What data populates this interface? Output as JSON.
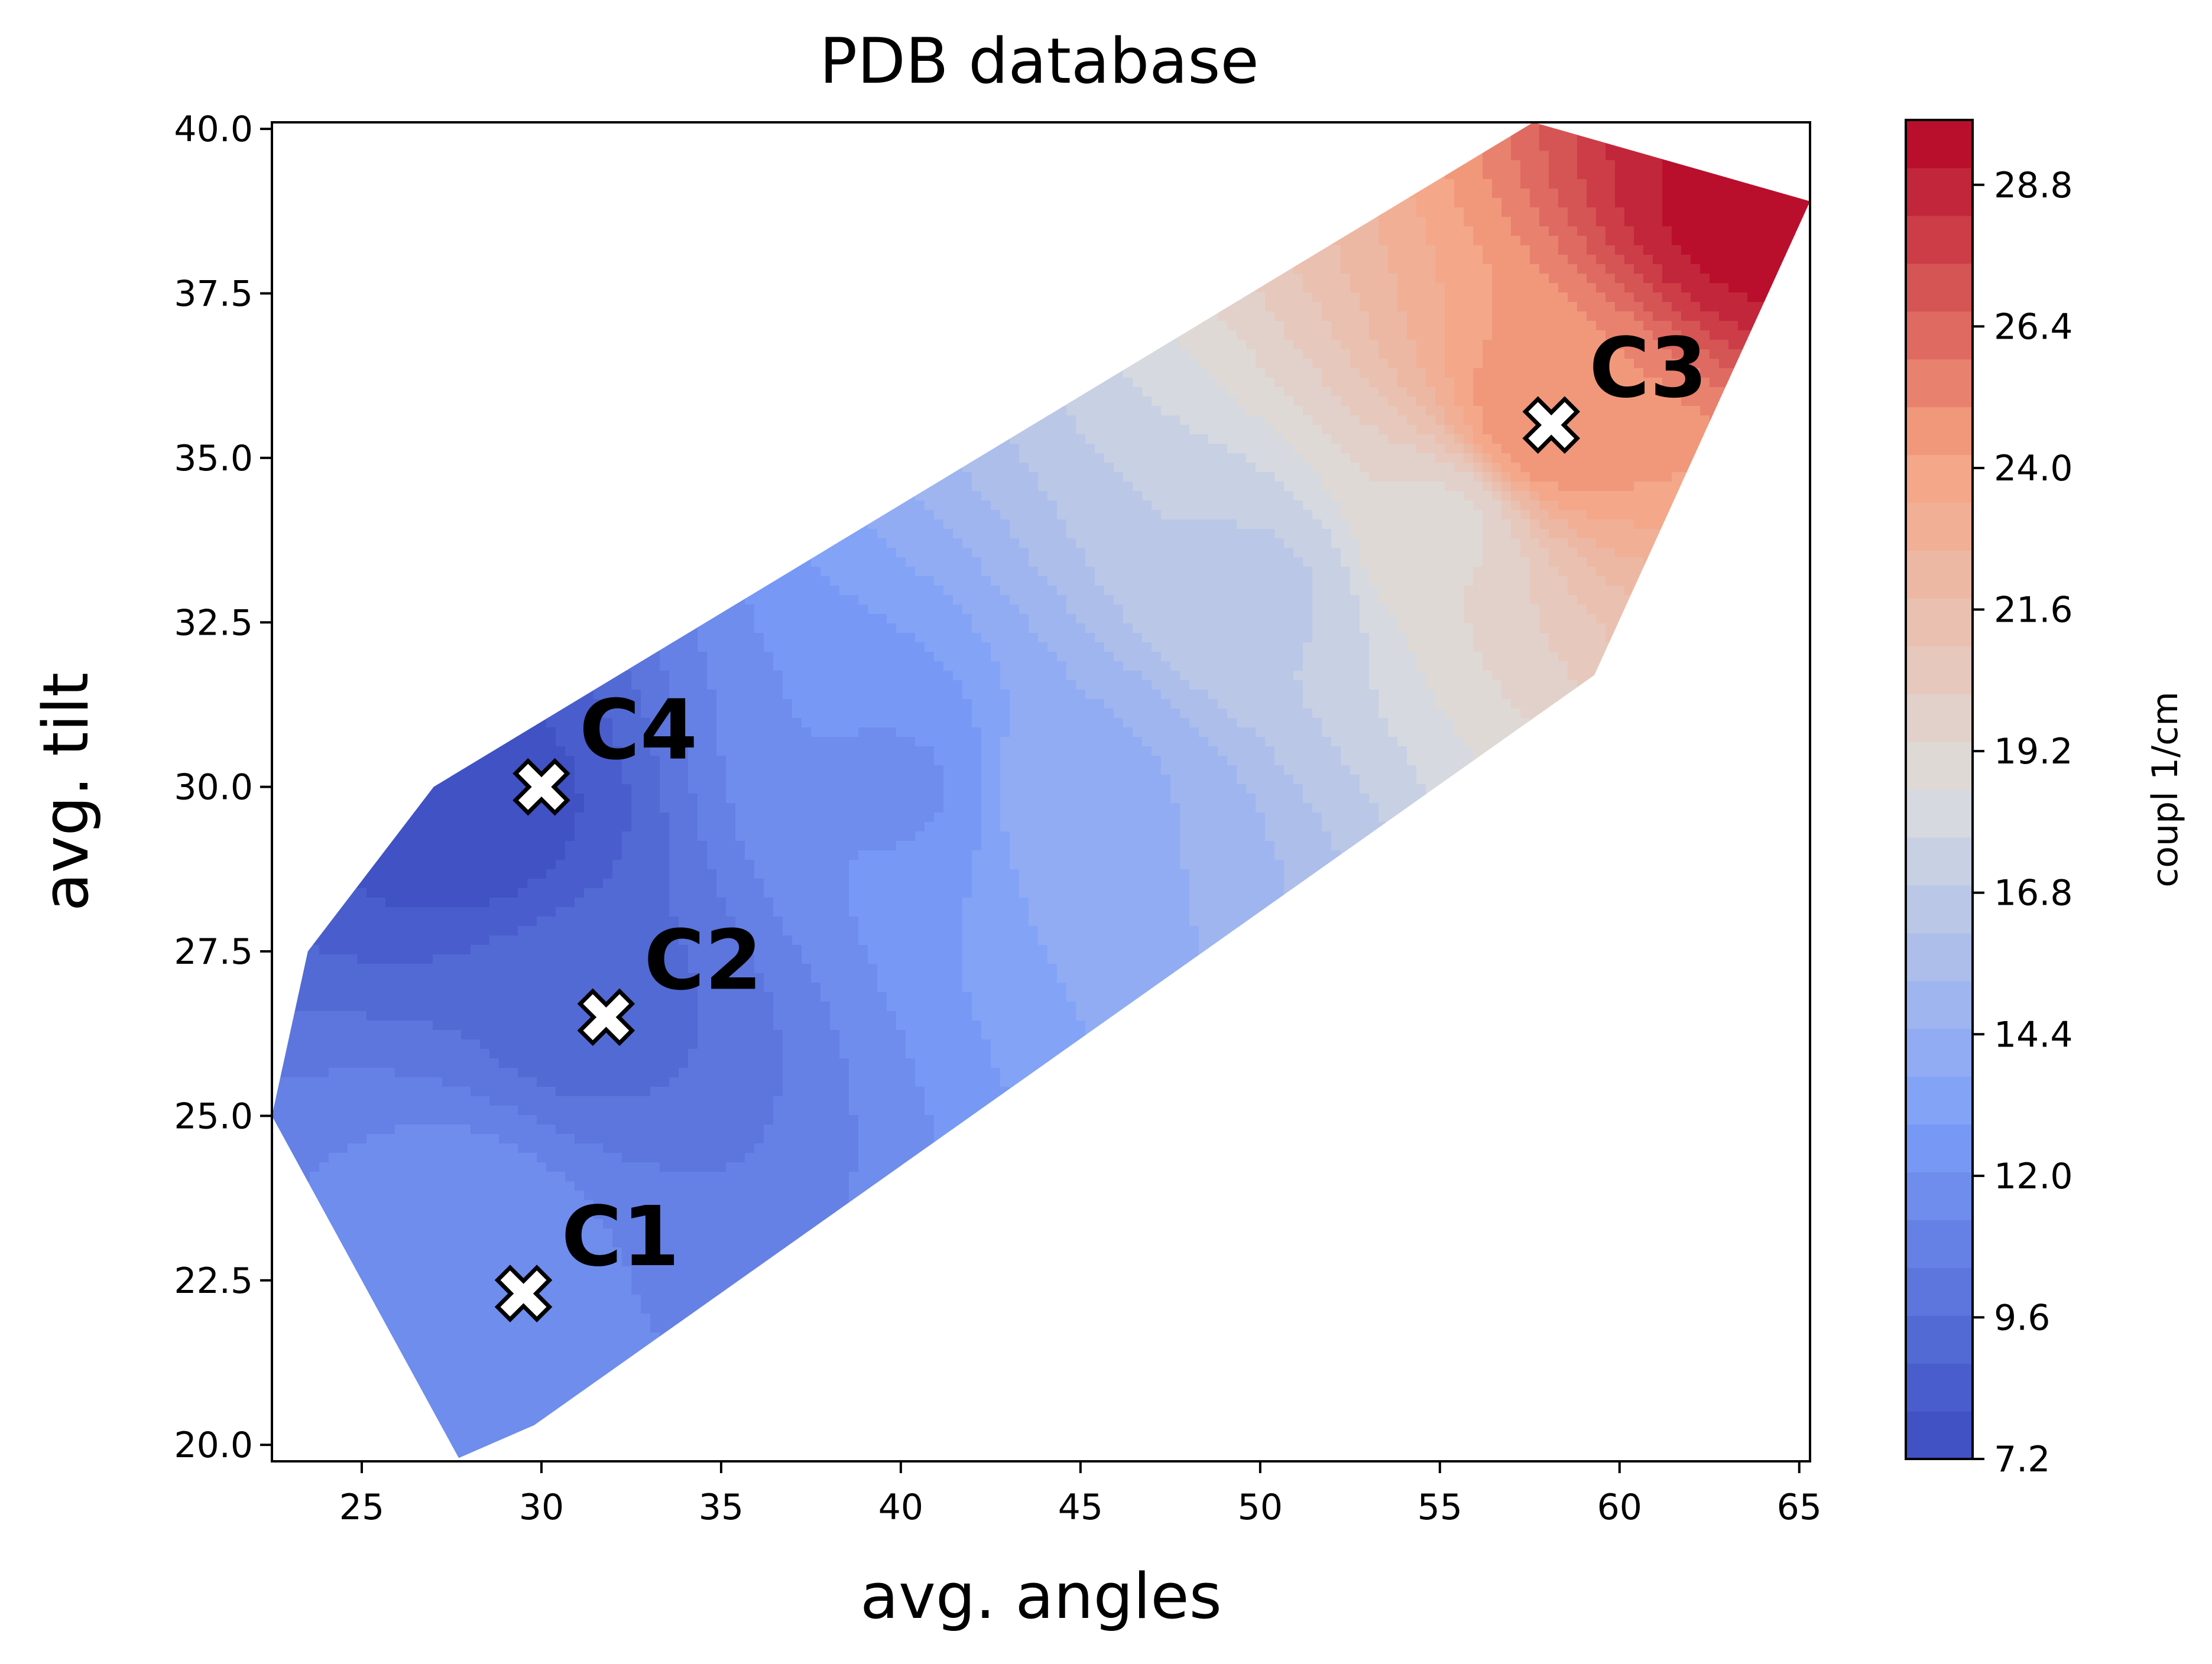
{
  "chart_data": {
    "type": "contour",
    "title": "PDB database",
    "xlabel": "avg. angles",
    "ylabel": "avg. tilt",
    "xlim": [
      22.5,
      65.3
    ],
    "ylim": [
      19.75,
      40.1
    ],
    "x_ticks": [
      "25",
      "30",
      "35",
      "40",
      "45",
      "50",
      "55",
      "60",
      "65"
    ],
    "y_ticks": [
      "20.0",
      "22.5",
      "25.0",
      "27.5",
      "30.0",
      "32.5",
      "35.0",
      "37.5",
      "40.0"
    ],
    "grid": false,
    "colorbar": {
      "label": "coupl 1/cm",
      "colormap": "coolwarm",
      "range": [
        7.2,
        29.9
      ],
      "ticks": [
        "7.2",
        "9.6",
        "12.0",
        "14.4",
        "16.8",
        "19.2",
        "21.6",
        "24.0",
        "26.4",
        "28.8"
      ]
    },
    "region_hull": [
      [
        27.7,
        19.8
      ],
      [
        22.5,
        25.0
      ],
      [
        23.5,
        27.5
      ],
      [
        27.0,
        30.0
      ],
      [
        57.6,
        40.1
      ],
      [
        65.3,
        38.9
      ],
      [
        59.3,
        31.7
      ],
      [
        29.8,
        20.3
      ]
    ],
    "contour_field": {
      "description": "coupling value increases roughly with avg. angles",
      "samples": [
        {
          "x": 28,
          "y": 29.5,
          "v": 7.6
        },
        {
          "x": 31,
          "y": 26.5,
          "v": 9.4
        },
        {
          "x": 28,
          "y": 23.5,
          "v": 11.6
        },
        {
          "x": 40,
          "y": 30.0,
          "v": 12.0
        },
        {
          "x": 45,
          "y": 30.0,
          "v": 14.4
        },
        {
          "x": 50,
          "y": 33.0,
          "v": 16.8
        },
        {
          "x": 55,
          "y": 34.0,
          "v": 19.2
        },
        {
          "x": 58,
          "y": 35.5,
          "v": 25.0
        },
        {
          "x": 64,
          "y": 38.8,
          "v": 29.5
        }
      ]
    },
    "markers": [
      {
        "label": "C1",
        "x": 29.5,
        "y": 22.3
      },
      {
        "label": "C2",
        "x": 31.8,
        "y": 26.5
      },
      {
        "label": "C3",
        "x": 58.1,
        "y": 35.5
      },
      {
        "label": "C4",
        "x": 30.0,
        "y": 30.0
      }
    ]
  }
}
